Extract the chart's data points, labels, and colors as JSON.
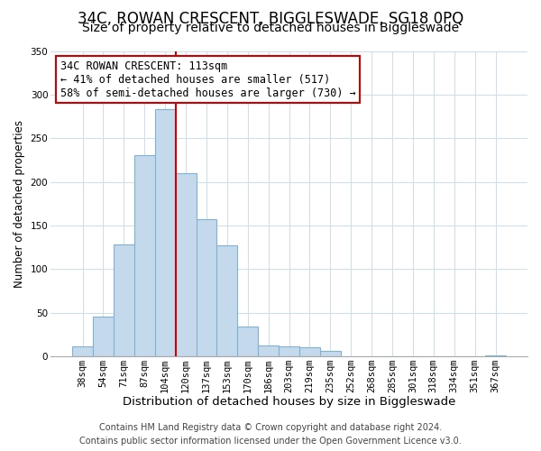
{
  "title": "34C, ROWAN CRESCENT, BIGGLESWADE, SG18 0PQ",
  "subtitle": "Size of property relative to detached houses in Biggleswade",
  "xlabel": "Distribution of detached houses by size in Biggleswade",
  "ylabel": "Number of detached properties",
  "bar_labels": [
    "38sqm",
    "54sqm",
    "71sqm",
    "87sqm",
    "104sqm",
    "120sqm",
    "137sqm",
    "153sqm",
    "170sqm",
    "186sqm",
    "203sqm",
    "219sqm",
    "235sqm",
    "252sqm",
    "268sqm",
    "285sqm",
    "301sqm",
    "318sqm",
    "334sqm",
    "351sqm",
    "367sqm"
  ],
  "bar_values": [
    11,
    46,
    128,
    231,
    283,
    210,
    157,
    127,
    34,
    12,
    11,
    10,
    6,
    0,
    0,
    0,
    0,
    0,
    0,
    0,
    1
  ],
  "bar_color": "#c5d9ed",
  "bar_edge_color": "#7fb3d3",
  "ylim": [
    0,
    350
  ],
  "yticks": [
    0,
    50,
    100,
    150,
    200,
    250,
    300,
    350
  ],
  "vline_x_index": 4.5,
  "vline_color": "#cc0000",
  "annotation_title": "34C ROWAN CRESCENT: 113sqm",
  "annotation_line1": "← 41% of detached houses are smaller (517)",
  "annotation_line2": "58% of semi-detached houses are larger (730) →",
  "footer_line1": "Contains HM Land Registry data © Crown copyright and database right 2024.",
  "footer_line2": "Contains public sector information licensed under the Open Government Licence v3.0.",
  "background_color": "#ffffff",
  "grid_color": "#ccdded",
  "title_fontsize": 12,
  "subtitle_fontsize": 10,
  "xlabel_fontsize": 9.5,
  "ylabel_fontsize": 8.5,
  "tick_fontsize": 7.5,
  "footer_fontsize": 7,
  "annotation_fontsize": 8.5
}
